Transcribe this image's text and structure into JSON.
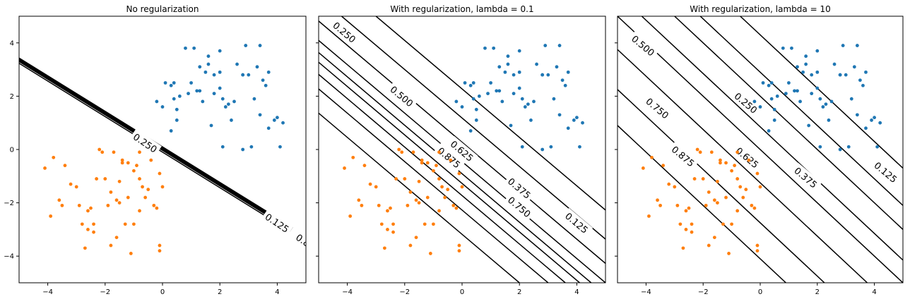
{
  "figure": {
    "colors": {
      "class_a": "#1f77b4",
      "class_b": "#ff7f0e",
      "contour": "#000000",
      "frame": "#000000"
    }
  },
  "chart_data": [
    {
      "type": "scatter",
      "title": "No regularization",
      "xlabel": "",
      "ylabel": "",
      "xlim": [
        -5,
        5
      ],
      "ylim": [
        -5,
        5
      ],
      "xticks": [
        -4,
        -2,
        0,
        2,
        4
      ],
      "xtick_labels": [
        "−4",
        "−2",
        "0",
        "2",
        "4"
      ],
      "yticks": [
        -4,
        -2,
        0,
        2,
        4
      ],
      "ytick_labels": [
        "−4",
        "−2",
        "0",
        "2",
        "4"
      ],
      "show_y_tick_labels": true,
      "decision_contours": {
        "normal": [
          1.0,
          1.5
        ],
        "lines": [
          -0.15,
          -0.05,
          0.0,
          0.05,
          0.1,
          0.15
        ],
        "labels": [
          {
            "text": "0.250",
            "x": -0.6,
            "y": 0.25,
            "angle": 34
          },
          {
            "text": "0.125",
            "x": 4.0,
            "y": -2.75,
            "angle": 34
          },
          {
            "text": "0.8",
            "x": 4.9,
            "y": -3.4,
            "angle": 34
          }
        ]
      }
    },
    {
      "type": "scatter",
      "title": "With regularization, lambda = 0.1",
      "xlabel": "",
      "ylabel": "",
      "xlim": [
        -5,
        5
      ],
      "ylim": [
        -5,
        5
      ],
      "xticks": [
        -4,
        -2,
        0,
        2,
        4
      ],
      "xtick_labels": [
        "−4",
        "−2",
        "0",
        "2",
        "4"
      ],
      "show_y_tick_labels": false,
      "decision_contours": {
        "normal": [
          1.0,
          1.1
        ],
        "lines": [
          -3.5,
          -2.5,
          -1.9,
          -1.4,
          -1.0,
          -0.5,
          0.3,
          1.3,
          2.5
        ],
        "labels": [
          {
            "text": "0.250",
            "x": -4.1,
            "y": 4.4,
            "angle": 40
          },
          {
            "text": "0.500",
            "x": -2.1,
            "y": 2.0,
            "angle": 40
          },
          {
            "text": "0.625",
            "x": 0.0,
            "y": -0.05,
            "angle": 40
          },
          {
            "text": "0.875",
            "x": -0.45,
            "y": -0.3,
            "angle": 40
          },
          {
            "text": "0.375",
            "x": 2.0,
            "y": -1.45,
            "angle": 40
          },
          {
            "text": "0.750",
            "x": 2.0,
            "y": -2.15,
            "angle": 40
          },
          {
            "text": "0.125",
            "x": 4.0,
            "y": -2.75,
            "angle": 40
          }
        ]
      }
    },
    {
      "type": "scatter",
      "title": "With regularization, lambda = 10",
      "xlabel": "",
      "ylabel": "",
      "xlim": [
        -5,
        5
      ],
      "ylim": [
        -5,
        5
      ],
      "xticks": [
        -4,
        -2,
        0,
        2,
        4
      ],
      "xtick_labels": [
        "−4",
        "−2",
        "0",
        "2",
        "4"
      ],
      "show_y_tick_labels": false,
      "decision_contours": {
        "normal": [
          1.0,
          1.0
        ],
        "lines": [
          -4.1,
          -2.75,
          -1.25,
          0.0,
          0.85,
          2.0,
          2.9,
          4.3
        ],
        "labels": [
          {
            "text": "0.500",
            "x": -4.1,
            "y": 3.9,
            "angle": 40
          },
          {
            "text": "0.250",
            "x": -0.5,
            "y": 1.75,
            "angle": 40
          },
          {
            "text": "0.750",
            "x": -3.6,
            "y": 1.55,
            "angle": 40
          },
          {
            "text": "0.875",
            "x": -2.7,
            "y": -0.25,
            "angle": 40
          },
          {
            "text": "0.625",
            "x": -0.45,
            "y": -0.3,
            "angle": 40
          },
          {
            "text": "0.375",
            "x": 1.6,
            "y": -1.05,
            "angle": 40
          },
          {
            "text": "0.125",
            "x": 4.4,
            "y": -0.85,
            "angle": 40
          }
        ]
      }
    }
  ],
  "scatter_points": {
    "class_a": [
      [
        -0.2,
        1.8
      ],
      [
        0.0,
        1.6
      ],
      [
        0.1,
        2.5
      ],
      [
        0.3,
        2.4
      ],
      [
        0.4,
        2.5
      ],
      [
        0.5,
        1.5
      ],
      [
        0.4,
        1.9
      ],
      [
        0.3,
        0.7
      ],
      [
        0.5,
        1.1
      ],
      [
        0.6,
        2.0
      ],
      [
        0.8,
        3.8
      ],
      [
        0.9,
        2.1
      ],
      [
        1.0,
        2.5
      ],
      [
        1.1,
        3.8
      ],
      [
        1.2,
        2.2
      ],
      [
        1.3,
        2.2
      ],
      [
        1.3,
        3.1
      ],
      [
        1.4,
        1.8
      ],
      [
        1.5,
        2.9
      ],
      [
        1.6,
        3.2
      ],
      [
        1.6,
        3.5
      ],
      [
        1.7,
        0.9
      ],
      [
        1.8,
        2.1
      ],
      [
        1.8,
        2.8
      ],
      [
        2.0,
        3.7
      ],
      [
        2.0,
        2.9
      ],
      [
        2.0,
        2.3
      ],
      [
        2.1,
        1.9
      ],
      [
        2.1,
        0.1
      ],
      [
        2.2,
        1.6
      ],
      [
        2.3,
        1.7
      ],
      [
        2.4,
        1.1
      ],
      [
        2.5,
        1.8
      ],
      [
        2.6,
        3.2
      ],
      [
        2.8,
        2.8
      ],
      [
        2.8,
        2.8
      ],
      [
        2.9,
        3.9
      ],
      [
        3.0,
        2.8
      ],
      [
        3.1,
        0.1
      ],
      [
        3.2,
        1.9
      ],
      [
        3.3,
        3.1
      ],
      [
        3.4,
        3.9
      ],
      [
        3.4,
        1.3
      ],
      [
        3.5,
        2.6
      ],
      [
        3.6,
        2.4
      ],
      [
        3.7,
        2.9
      ],
      [
        3.7,
        0.8
      ],
      [
        3.9,
        1.1
      ],
      [
        4.0,
        1.2
      ],
      [
        4.1,
        0.1
      ],
      [
        4.2,
        1.0
      ],
      [
        2.8,
        0.0
      ]
    ],
    "class_b": [
      [
        -4.1,
        -0.7
      ],
      [
        -3.9,
        -2.5
      ],
      [
        -3.8,
        -0.3
      ],
      [
        -3.6,
        -1.9
      ],
      [
        -3.5,
        -2.1
      ],
      [
        -3.4,
        -0.6
      ],
      [
        -3.2,
        -1.3
      ],
      [
        -3.0,
        -1.4
      ],
      [
        -2.9,
        -2.1
      ],
      [
        -2.8,
        -2.8
      ],
      [
        -2.7,
        -3.7
      ],
      [
        -2.6,
        -2.3
      ],
      [
        -2.5,
        -2.2
      ],
      [
        -2.4,
        -2.8
      ],
      [
        -2.4,
        -3.1
      ],
      [
        -2.3,
        -1.1
      ],
      [
        -2.2,
        0.0
      ],
      [
        -2.1,
        -0.1
      ],
      [
        -2.0,
        -1.1
      ],
      [
        -1.9,
        -2.1
      ],
      [
        -1.8,
        -3.6
      ],
      [
        -1.8,
        -1.6
      ],
      [
        -1.7,
        -0.1
      ],
      [
        -1.6,
        -3.3
      ],
      [
        -1.6,
        -1.9
      ],
      [
        -1.5,
        -1.2
      ],
      [
        -1.5,
        -2.0
      ],
      [
        -1.4,
        -0.4
      ],
      [
        -1.3,
        -2.8
      ],
      [
        -1.2,
        -1.8
      ],
      [
        -1.1,
        -3.9
      ],
      [
        -1.0,
        -2.8
      ],
      [
        -1.0,
        -0.8
      ],
      [
        -0.9,
        -0.6
      ],
      [
        -0.8,
        -0.1
      ],
      [
        -0.8,
        -2.3
      ],
      [
        -0.7,
        -1.4
      ],
      [
        -0.6,
        -1.8
      ],
      [
        -0.5,
        -1.5
      ],
      [
        -0.4,
        -0.4
      ],
      [
        -0.3,
        -2.1
      ],
      [
        -0.2,
        -2.2
      ],
      [
        -0.1,
        -3.6
      ],
      [
        -0.1,
        -3.8
      ],
      [
        0.0,
        -1.4
      ],
      [
        -0.8,
        -1.1
      ],
      [
        -1.2,
        -0.5
      ],
      [
        -2.6,
        -3.0
      ],
      [
        -0.1,
        -0.9
      ],
      [
        -1.4,
        -0.5
      ]
    ]
  }
}
